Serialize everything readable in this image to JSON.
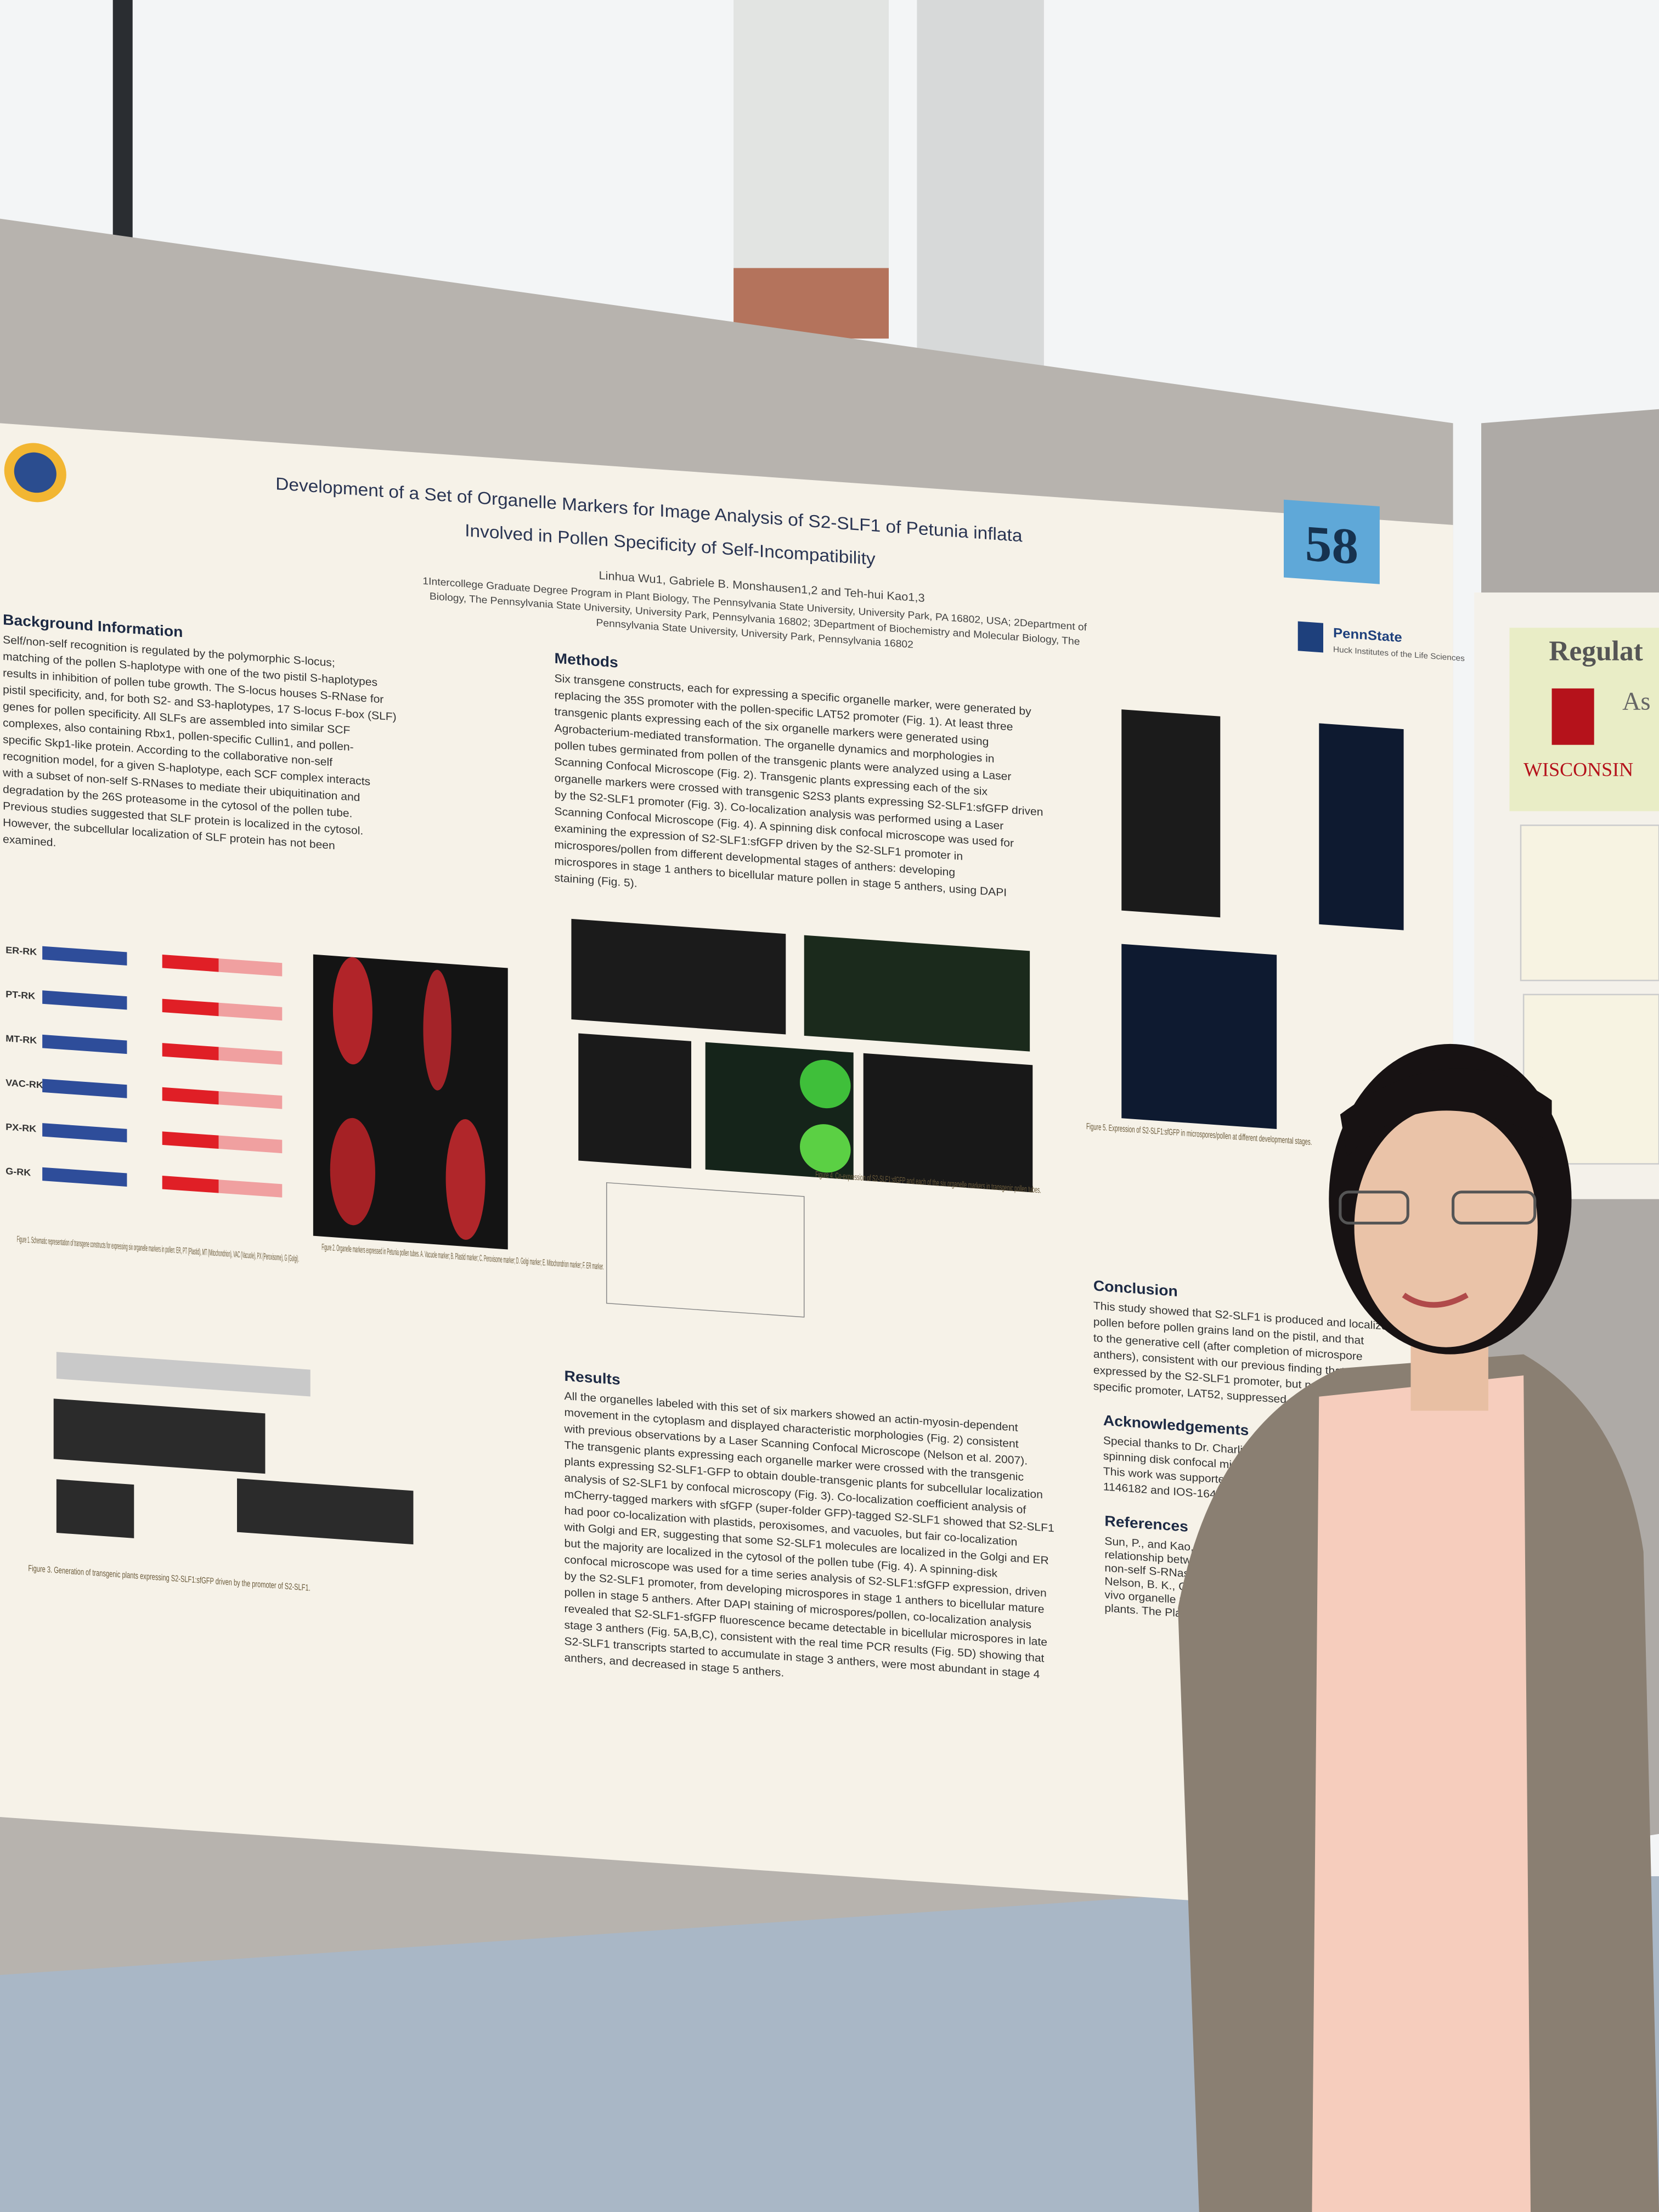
{
  "poster": {
    "booth_number": "58",
    "title_line1": "Development of a Set of Organelle Markers for Image Analysis of S2-SLF1 of Petunia inflata",
    "title_line2": "Involved in Pollen Specificity of Self-Incompatibility",
    "authors": "Linhua Wu1, Gabriele B. Monshausen1,2 and Teh-hui Kao1,3",
    "affiliation_lines": [
      "1Intercollege Graduate Degree Program in Plant Biology, The Pennsylvania State University, University Park, PA 16802, USA; 2Department of",
      "Biology, The Pennsylvania State University, University Park, Pennsylvania 16802; 3Department of Biochemistry and Molecular Biology, The",
      "Pennsylvania State University, University Park, Pennsylvania 16802"
    ],
    "logo": "PennState",
    "logo_subtitle": "Huck Institutes of the Life Sciences",
    "sections": [
      {
        "heading": "Background Information",
        "body": [
          "Self/non-self recognition is regulated by the polymorphic S-locus;",
          "matching of the pollen S-haplotype with one of the two pistil S-haplotypes",
          "results in inhibition of pollen tube growth. The S-locus houses S-RNase for",
          "pistil specificity, and, for both S2- and S3-haplotypes, 17 S-locus F-box (SLF)",
          "genes for pollen specificity. All SLFs are assembled into similar SCF",
          "complexes, also containing Rbx1, pollen-specific Cullin1, and pollen-",
          "specific Skp1-like protein. According to the collaborative non-self",
          "recognition model, for a given S-haplotype, each SCF complex interacts",
          "with a subset of non-self S-RNases to mediate their ubiquitination and",
          "degradation by the 26S proteasome in the cytosol of the pollen tube.",
          "Previous studies suggested that SLF protein is localized in the cytosol.",
          "However, the subcellular localization of SLF protein has not been",
          "examined."
        ]
      },
      {
        "heading": "Methods",
        "body": [
          "Six transgene constructs, each for expressing a specific organelle marker, were generated by",
          "replacing the 35S promoter with the pollen-specific LAT52 promoter (Fig. 1). At least three",
          "transgenic plants expressing each of the six organelle markers were generated using",
          "Agrobacterium-mediated transformation. The organelle dynamics and morphologies in",
          "pollen tubes germinated from pollen of the transgenic plants were analyzed using a Laser",
          "Scanning Confocal Microscope (Fig. 2). Transgenic plants expressing each of the six",
          "organelle markers were crossed with transgenic S2S3 plants expressing S2-SLF1:sfGFP driven",
          "by the S2-SLF1 promoter (Fig. 3). Co-localization analysis was performed using a Laser",
          "Scanning Confocal Microscope (Fig. 4). A spinning disk confocal microscope was used for",
          "examining the expression of S2-SLF1:sfGFP driven by the S2-SLF1 promoter in",
          "microspores/pollen from different developmental stages of anthers: developing",
          "microspores in stage 1 anthers to bicellular mature pollen in stage 5 anthers, using DAPI",
          "staining (Fig. 5)."
        ]
      },
      {
        "heading": "Results",
        "body": [
          "All the organelles labeled with this set of six markers showed an actin-myosin-dependent",
          "movement in the cytoplasm and displayed characteristic morphologies (Fig. 2) consistent",
          "with previous observations by a Laser Scanning Confocal Microscope (Nelson et al. 2007).",
          "The transgenic plants expressing each organelle marker were crossed with the transgenic",
          "plants expressing S2-SLF1-GFP to obtain double-transgenic plants for subcellular localization",
          "analysis of S2-SLF1 by confocal microscopy (Fig. 3). Co-localization coefficient analysis of",
          "mCherry-tagged markers with sfGFP (super-folder GFP)-tagged S2-SLF1 showed that S2-SLF1",
          "had poor co-localization with plastids, peroxisomes, and vacuoles, but fair co-localization",
          "with Golgi and ER, suggesting that some S2-SLF1 molecules are localized in the Golgi and ER",
          "but the majority are localized in the cytosol of the pollen tube (Fig. 4). A spinning-disk",
          "confocal microscope was used for a time series analysis of S2-SLF1:sfGFP expression, driven",
          "by the S2-SLF1 promoter, from developing microspores in stage 1 anthers to bicellular mature",
          "pollen in stage 5 anthers. After DAPI staining of microspores/pollen, co-localization analysis",
          "revealed that S2-SLF1-sfGFP fluorescence became detectable in bicellular microspores in late",
          "stage 3 anthers (Fig. 5A,B,C), consistent with the real time PCR results (Fig. 5D) showing that",
          "S2-SLF1 transcripts started to accumulate in stage 3 anthers, were most abundant in stage 4",
          "anthers, and decreased in stage 5 anthers."
        ]
      },
      {
        "heading": "Conclusion",
        "body": [
          "This study showed that S2-SLF1 is produced and localized",
          "pollen before pollen grains land on the pistil, and that",
          "to the generative cell (after completion of microspore",
          "anthers), consistent with our previous finding that an an",
          "expressed by the S2-SLF1 promoter, but not by the vegeta",
          "specific promoter, LAT52, suppressed expression of S2-SLF1"
        ]
      },
      {
        "heading": "Acknowledgements",
        "body": [
          "Special thanks to Dr. Charlie A",
          "spinning disk confocal micro",
          "This work was supported by",
          "1146182 and IOS-1645557"
        ]
      },
      {
        "heading": "References",
        "body": [
          "Sun, P., and Kao, T.-h. (20",
          "relationship between a",
          "non-self S-RNases. The",
          "Nelson, B. K., Cai, X., an",
          "vivo organelle markers",
          "plants. The Plant Journ"
        ]
      }
    ],
    "figure_captions": [
      "Figure 1. Schematic representation of transgene constructs for expressing six organelle markers in pollen: ER, PT (Plastid), MT (Mitochondrion), VAC (Vacuole), PX (Peroxisome), G (Golgi).",
      "Figure 2. Organelle markers expressed in Petunia pollen tubes. A. Vacuole marker; B. Plastid marker; C. Peroxisome marker; D. Golgi marker; E. Mitochondrion marker; F. ER marker.",
      "Figure 3. Generation of transgenic plants expressing S2-SLF1:sfGFP driven by the promoter of S2-SLF1.",
      "Figure 4. Co-expression of S2-SLF1:sfGFP and each of the six organelle markers in transgenic pollen tubes.",
      "Figure 5. Expression of S2-SLF1:sfGFP in microspores/pollen at different developmental stages."
    ],
    "construct_labels": [
      "ER-RK",
      "PT-RK",
      "MT-RK",
      "VAC-RK",
      "PX-RK",
      "G-RK"
    ]
  },
  "side_poster": {
    "title": "Regulat",
    "subtitle": "As",
    "logo": "WISCONSIN"
  }
}
